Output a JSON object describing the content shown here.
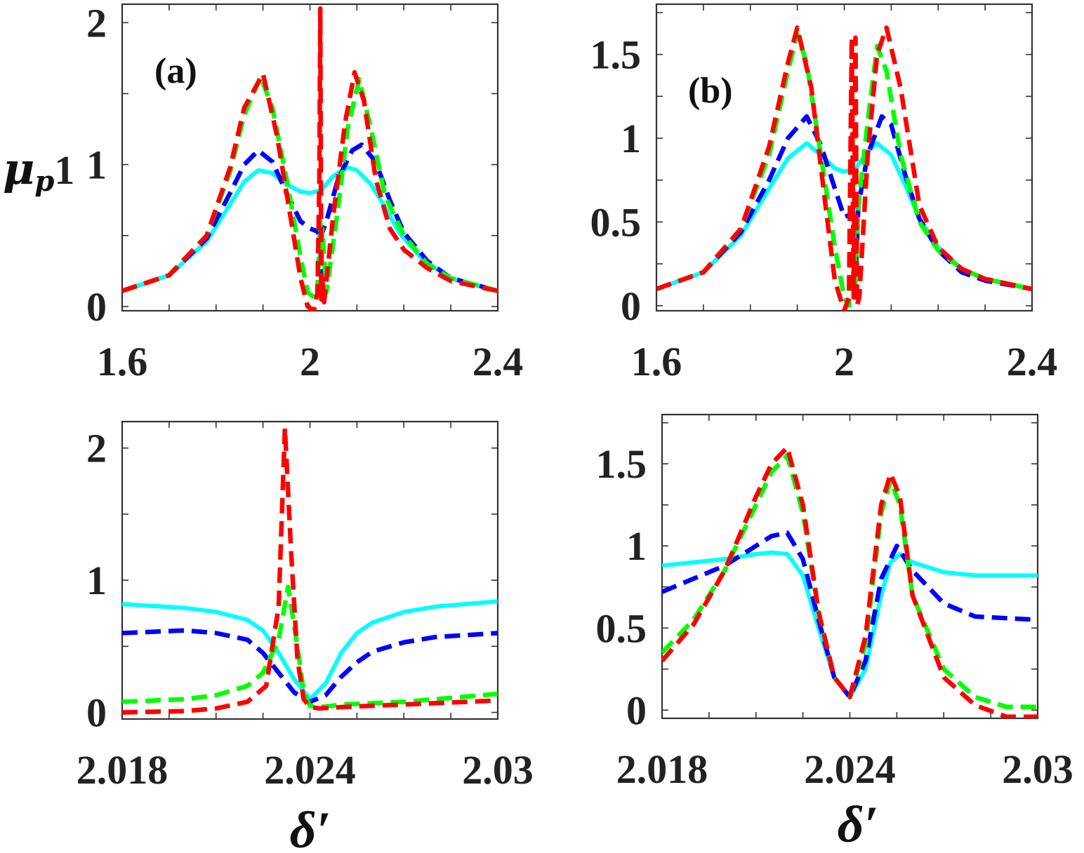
{
  "figure": {
    "ylabel_main": "μ",
    "ylabel_sub": "p",
    "ylabel_tail": "1",
    "xlabel": "δ′"
  },
  "series_styles": [
    {
      "name": "cyan-solid",
      "color": "#00ffff",
      "dash": "solid"
    },
    {
      "name": "blue-dashed",
      "color": "#0000ff",
      "dash": "dashed"
    },
    {
      "name": "green-dashed",
      "color": "#00ff00",
      "dash": "dashed"
    },
    {
      "name": "red-dashed",
      "color": "#ff0000",
      "dash": "dashed"
    }
  ],
  "chart_data": [
    {
      "id": "top-left",
      "type": "line",
      "panel_label": "(a)",
      "xlim": [
        1.6,
        2.4
      ],
      "ylim": [
        -0.03,
        2.13
      ],
      "xticks": [
        1.6,
        2,
        2.4
      ],
      "xtick_labels": [
        "1.6",
        "2",
        "2.4"
      ],
      "yticks": [
        0,
        1,
        2
      ],
      "ytick_labels": [
        "0",
        "1",
        "2"
      ],
      "series": [
        {
          "name": "cyan-solid",
          "x": [
            1.6,
            1.7,
            1.78,
            1.83,
            1.86,
            1.89,
            1.92,
            1.95,
            1.98,
            2.0,
            2.024,
            2.05,
            2.08,
            2.1,
            2.13,
            2.16,
            2.19,
            2.24,
            2.3,
            2.4
          ],
          "y": [
            0.11,
            0.22,
            0.46,
            0.72,
            0.88,
            0.96,
            0.94,
            0.86,
            0.81,
            0.8,
            0.82,
            0.92,
            0.98,
            0.96,
            0.86,
            0.7,
            0.52,
            0.33,
            0.2,
            0.11
          ]
        },
        {
          "name": "blue-dashed",
          "x": [
            1.6,
            1.7,
            1.78,
            1.83,
            1.86,
            1.89,
            1.92,
            1.95,
            1.98,
            2.0,
            2.015,
            2.022,
            2.024,
            2.026,
            2.035,
            2.06,
            2.09,
            2.11,
            2.14,
            2.17,
            2.2,
            2.25,
            2.3,
            2.4
          ],
          "y": [
            0.11,
            0.22,
            0.48,
            0.8,
            1.0,
            1.1,
            1.02,
            0.8,
            0.6,
            0.55,
            0.53,
            0.5,
            0.2,
            0.52,
            0.6,
            0.9,
            1.1,
            1.14,
            1.02,
            0.75,
            0.52,
            0.32,
            0.2,
            0.11
          ]
        },
        {
          "name": "green-dashed",
          "x": [
            1.6,
            1.7,
            1.78,
            1.83,
            1.86,
            1.895,
            1.92,
            1.95,
            1.98,
            1.995,
            2.015,
            2.022,
            2.024,
            2.026,
            2.035,
            2.06,
            2.08,
            2.105,
            2.13,
            2.16,
            2.2,
            2.25,
            2.3,
            2.4
          ],
          "y": [
            0.11,
            0.22,
            0.5,
            0.95,
            1.35,
            1.62,
            1.4,
            0.9,
            0.35,
            0.1,
            0.05,
            0.6,
            0.3,
            0.55,
            0.1,
            0.7,
            1.25,
            1.6,
            1.25,
            0.78,
            0.5,
            0.3,
            0.2,
            0.11
          ]
        },
        {
          "name": "red-dashed",
          "x": [
            1.6,
            1.7,
            1.78,
            1.83,
            1.86,
            1.9,
            1.93,
            1.96,
            1.98,
            1.995,
            2.008,
            2.016,
            2.02,
            2.022,
            2.024,
            2.026,
            2.03,
            2.05,
            2.075,
            2.095,
            2.115,
            2.14,
            2.17,
            2.2,
            2.25,
            2.3,
            2.4
          ],
          "y": [
            0.11,
            0.22,
            0.5,
            0.98,
            1.4,
            1.64,
            1.2,
            0.6,
            0.2,
            0.0,
            -0.03,
            0.1,
            0.9,
            2.1,
            0.05,
            0.2,
            0.03,
            0.65,
            1.3,
            1.65,
            1.45,
            0.9,
            0.55,
            0.4,
            0.27,
            0.18,
            0.11
          ]
        }
      ]
    },
    {
      "id": "top-right",
      "type": "line",
      "panel_label": "(b)",
      "xlim": [
        1.6,
        2.4
      ],
      "ylim": [
        -0.03,
        1.8
      ],
      "xticks": [
        1.6,
        2,
        2.4
      ],
      "xtick_labels": [
        "1.6",
        "2",
        "2.4"
      ],
      "yticks": [
        0,
        0.5,
        1,
        1.5
      ],
      "ytick_labels": [
        "0",
        "0.5",
        "1",
        "1.5"
      ],
      "series": [
        {
          "name": "cyan-solid",
          "x": [
            1.6,
            1.7,
            1.78,
            1.84,
            1.88,
            1.92,
            1.95,
            1.98,
            2.0,
            2.024,
            2.05,
            2.07,
            2.1,
            2.13,
            2.16,
            2.2,
            2.25,
            2.3,
            2.4
          ],
          "y": [
            0.1,
            0.2,
            0.42,
            0.7,
            0.88,
            0.97,
            0.9,
            0.82,
            0.8,
            0.82,
            0.92,
            0.97,
            0.9,
            0.72,
            0.52,
            0.35,
            0.22,
            0.16,
            0.1
          ]
        },
        {
          "name": "blue-dashed",
          "x": [
            1.6,
            1.7,
            1.78,
            1.84,
            1.88,
            1.92,
            1.95,
            1.98,
            2.0,
            2.02,
            2.024,
            2.03,
            2.05,
            2.08,
            2.1,
            2.13,
            2.16,
            2.2,
            2.25,
            2.3,
            2.4
          ],
          "y": [
            0.1,
            0.2,
            0.44,
            0.75,
            1.0,
            1.13,
            0.96,
            0.7,
            0.53,
            0.55,
            0.15,
            0.6,
            0.9,
            1.13,
            1.08,
            0.78,
            0.52,
            0.33,
            0.2,
            0.15,
            0.1
          ]
        },
        {
          "name": "green-dashed",
          "x": [
            1.6,
            1.7,
            1.78,
            1.84,
            1.88,
            1.9,
            1.92,
            1.95,
            1.98,
            2.0,
            2.01,
            2.02,
            2.024,
            2.03,
            2.05,
            2.07,
            2.09,
            2.12,
            2.16,
            2.2,
            2.25,
            2.3,
            2.4
          ],
          "y": [
            0.1,
            0.2,
            0.46,
            0.9,
            1.4,
            1.62,
            1.45,
            0.9,
            0.35,
            0.05,
            0.0,
            0.55,
            0.1,
            0.6,
            1.1,
            1.55,
            1.4,
            0.9,
            0.5,
            0.33,
            0.22,
            0.16,
            0.1
          ]
        },
        {
          "name": "red-dashed",
          "x": [
            1.6,
            1.7,
            1.78,
            1.84,
            1.88,
            1.9,
            1.93,
            1.96,
            1.98,
            2.0,
            2.01,
            2.016,
            2.02,
            2.024,
            2.027,
            2.032,
            2.05,
            2.07,
            2.09,
            2.12,
            2.16,
            2.2,
            2.25,
            2.3,
            2.4
          ],
          "y": [
            0.1,
            0.2,
            0.46,
            0.95,
            1.45,
            1.66,
            1.3,
            0.6,
            0.15,
            -0.03,
            0.05,
            1.6,
            0.05,
            1.6,
            0.0,
            0.05,
            0.9,
            1.5,
            1.66,
            1.3,
            0.6,
            0.35,
            0.22,
            0.16,
            0.1
          ]
        }
      ]
    },
    {
      "id": "bottom-left",
      "type": "line",
      "panel_label": "",
      "xlim": [
        2.018,
        2.03
      ],
      "ylim": [
        -0.05,
        2.2
      ],
      "xticks": [
        2.018,
        2.024,
        2.03
      ],
      "xtick_labels": [
        "2.018",
        "2.024",
        "2.03"
      ],
      "yticks": [
        0,
        1,
        2
      ],
      "ytick_labels": [
        "0",
        "1",
        "2"
      ],
      "series": [
        {
          "name": "cyan-solid",
          "x": [
            2.018,
            2.02,
            2.021,
            2.022,
            2.0225,
            2.023,
            2.0235,
            2.024,
            2.0245,
            2.025,
            2.0255,
            2.026,
            2.027,
            2.028,
            2.03
          ],
          "y": [
            0.82,
            0.79,
            0.76,
            0.7,
            0.62,
            0.45,
            0.25,
            0.1,
            0.22,
            0.45,
            0.6,
            0.68,
            0.76,
            0.8,
            0.84
          ]
        },
        {
          "name": "blue-dashed",
          "x": [
            2.018,
            2.02,
            2.021,
            2.022,
            2.0225,
            2.023,
            2.0235,
            2.024,
            2.0245,
            2.025,
            2.0255,
            2.026,
            2.027,
            2.028,
            2.03
          ],
          "y": [
            0.6,
            0.62,
            0.6,
            0.55,
            0.45,
            0.3,
            0.15,
            0.08,
            0.13,
            0.27,
            0.38,
            0.46,
            0.53,
            0.57,
            0.6
          ]
        },
        {
          "name": "green-dashed",
          "x": [
            2.018,
            2.02,
            2.021,
            2.022,
            2.0225,
            2.023,
            2.0233,
            2.0236,
            2.0238,
            2.024,
            2.0243,
            2.0247,
            2.025,
            2.027,
            2.03
          ],
          "y": [
            0.08,
            0.1,
            0.13,
            0.2,
            0.3,
            0.55,
            0.95,
            0.5,
            0.15,
            0.05,
            0.04,
            0.05,
            0.06,
            0.08,
            0.14
          ]
        },
        {
          "name": "red-dashed",
          "x": [
            2.018,
            2.02,
            2.021,
            2.022,
            2.0226,
            2.023,
            2.0232,
            2.0234,
            2.0236,
            2.0238,
            2.024,
            2.0243,
            2.025,
            2.027,
            2.03
          ],
          "y": [
            0.0,
            0.01,
            0.03,
            0.08,
            0.2,
            0.8,
            2.15,
            1.2,
            0.4,
            0.1,
            0.04,
            0.03,
            0.04,
            0.06,
            0.09
          ]
        }
      ]
    },
    {
      "id": "bottom-right",
      "type": "line",
      "panel_label": "",
      "xlim": [
        2.018,
        2.03
      ],
      "ylim": [
        -0.05,
        1.8
      ],
      "xticks": [
        2.018,
        2.024,
        2.03
      ],
      "xtick_labels": [
        "2.018",
        "2.024",
        "2.03"
      ],
      "yticks": [
        0,
        0.5,
        1,
        1.5
      ],
      "ytick_labels": [
        "0",
        "0.5",
        "1",
        "1.5"
      ],
      "series": [
        {
          "name": "cyan-solid",
          "x": [
            2.018,
            2.02,
            2.021,
            2.0215,
            2.022,
            2.0225,
            2.023,
            2.0235,
            2.024,
            2.0245,
            2.025,
            2.0253,
            2.0256,
            2.026,
            2.027,
            2.028,
            2.03
          ],
          "y": [
            0.88,
            0.92,
            0.95,
            0.96,
            0.95,
            0.82,
            0.5,
            0.2,
            0.08,
            0.25,
            0.7,
            0.9,
            0.95,
            0.9,
            0.84,
            0.82,
            0.82
          ]
        },
        {
          "name": "blue-dashed",
          "x": [
            2.018,
            2.02,
            2.021,
            2.0215,
            2.022,
            2.0225,
            2.023,
            2.0235,
            2.024,
            2.0245,
            2.025,
            2.0255,
            2.026,
            2.027,
            2.028,
            2.03
          ],
          "y": [
            0.72,
            0.88,
            1.0,
            1.06,
            1.08,
            0.92,
            0.55,
            0.2,
            0.08,
            0.3,
            0.8,
            1.0,
            0.85,
            0.65,
            0.57,
            0.55
          ]
        },
        {
          "name": "green-dashed",
          "x": [
            2.018,
            2.019,
            2.02,
            2.021,
            2.0215,
            2.022,
            2.0225,
            2.023,
            2.0235,
            2.024,
            2.0245,
            2.025,
            2.0253,
            2.0256,
            2.026,
            2.027,
            2.028,
            2.029,
            2.03
          ],
          "y": [
            0.35,
            0.55,
            0.85,
            1.25,
            1.45,
            1.55,
            1.2,
            0.6,
            0.2,
            0.08,
            0.4,
            1.2,
            1.4,
            1.25,
            0.7,
            0.25,
            0.08,
            0.02,
            0.02
          ]
        },
        {
          "name": "red-dashed",
          "x": [
            2.018,
            2.019,
            2.02,
            2.021,
            2.0215,
            2.022,
            2.0225,
            2.023,
            2.0235,
            2.024,
            2.0245,
            2.025,
            2.0253,
            2.0256,
            2.026,
            2.027,
            2.028,
            2.029,
            2.03
          ],
          "y": [
            0.3,
            0.52,
            0.85,
            1.3,
            1.5,
            1.6,
            1.25,
            0.6,
            0.2,
            0.08,
            0.45,
            1.25,
            1.44,
            1.3,
            0.7,
            0.2,
            0.03,
            -0.04,
            -0.04
          ]
        }
      ]
    }
  ]
}
